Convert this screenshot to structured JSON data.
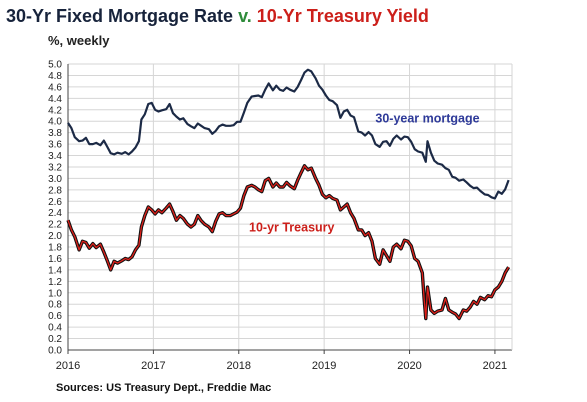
{
  "chart_data": {
    "type": "line",
    "title_part1": "30-Yr Fixed Mortgage Rate",
    "title_part2": "v.",
    "title_part3": "10-Yr Treasury Yield",
    "subtitle": "%, weekly",
    "source": "Sources: US Treasury Dept., Freddie Mac",
    "ylim": [
      0,
      5.0
    ],
    "xlim": [
      2016.0,
      2021.2
    ],
    "yticks": [
      "0.0",
      "0.2",
      "0.4",
      "0.6",
      "0.8",
      "1.0",
      "1.2",
      "1.4",
      "1.6",
      "1.8",
      "2.0",
      "2.2",
      "2.4",
      "2.6",
      "2.8",
      "3.0",
      "3.2",
      "3.4",
      "3.6",
      "3.8",
      "4.0",
      "4.2",
      "4.4",
      "4.6",
      "4.8",
      "5.0"
    ],
    "xticks": [
      "2016",
      "2017",
      "2018",
      "2019",
      "2020",
      "2021"
    ],
    "grid": true,
    "colors": {
      "mortgage": "#1c2a46",
      "treasury": "#111111",
      "treasury_overlay": "#e0201a",
      "grid": "#d6d6d6",
      "axis": "#444444"
    },
    "series": [
      {
        "name": "30-year mortgage",
        "points": [
          [
            2016.0,
            3.97
          ],
          [
            2016.04,
            3.88
          ],
          [
            2016.08,
            3.72
          ],
          [
            2016.13,
            3.65
          ],
          [
            2016.17,
            3.66
          ],
          [
            2016.21,
            3.71
          ],
          [
            2016.25,
            3.6
          ],
          [
            2016.29,
            3.6
          ],
          [
            2016.33,
            3.62
          ],
          [
            2016.38,
            3.58
          ],
          [
            2016.42,
            3.66
          ],
          [
            2016.46,
            3.55
          ],
          [
            2016.5,
            3.44
          ],
          [
            2016.54,
            3.42
          ],
          [
            2016.58,
            3.45
          ],
          [
            2016.63,
            3.43
          ],
          [
            2016.67,
            3.46
          ],
          [
            2016.71,
            3.42
          ],
          [
            2016.75,
            3.47
          ],
          [
            2016.79,
            3.54
          ],
          [
            2016.83,
            3.65
          ],
          [
            2016.86,
            4.03
          ],
          [
            2016.9,
            4.12
          ],
          [
            2016.94,
            4.3
          ],
          [
            2016.98,
            4.32
          ],
          [
            2017.02,
            4.2
          ],
          [
            2017.06,
            4.17
          ],
          [
            2017.1,
            4.19
          ],
          [
            2017.15,
            4.21
          ],
          [
            2017.19,
            4.3
          ],
          [
            2017.23,
            4.14
          ],
          [
            2017.27,
            4.08
          ],
          [
            2017.31,
            4.03
          ],
          [
            2017.35,
            4.05
          ],
          [
            2017.4,
            3.95
          ],
          [
            2017.44,
            3.91
          ],
          [
            2017.48,
            3.88
          ],
          [
            2017.52,
            3.96
          ],
          [
            2017.56,
            3.92
          ],
          [
            2017.6,
            3.88
          ],
          [
            2017.65,
            3.86
          ],
          [
            2017.69,
            3.78
          ],
          [
            2017.73,
            3.83
          ],
          [
            2017.77,
            3.91
          ],
          [
            2017.81,
            3.94
          ],
          [
            2017.85,
            3.92
          ],
          [
            2017.9,
            3.92
          ],
          [
            2017.94,
            3.93
          ],
          [
            2017.98,
            3.99
          ],
          [
            2018.02,
            3.99
          ],
          [
            2018.06,
            4.15
          ],
          [
            2018.1,
            4.32
          ],
          [
            2018.15,
            4.43
          ],
          [
            2018.19,
            4.44
          ],
          [
            2018.23,
            4.45
          ],
          [
            2018.27,
            4.42
          ],
          [
            2018.31,
            4.55
          ],
          [
            2018.35,
            4.66
          ],
          [
            2018.4,
            4.54
          ],
          [
            2018.44,
            4.62
          ],
          [
            2018.48,
            4.55
          ],
          [
            2018.52,
            4.53
          ],
          [
            2018.56,
            4.59
          ],
          [
            2018.6,
            4.55
          ],
          [
            2018.65,
            4.52
          ],
          [
            2018.69,
            4.6
          ],
          [
            2018.73,
            4.72
          ],
          [
            2018.77,
            4.85
          ],
          [
            2018.81,
            4.9
          ],
          [
            2018.85,
            4.87
          ],
          [
            2018.9,
            4.75
          ],
          [
            2018.94,
            4.62
          ],
          [
            2018.98,
            4.55
          ],
          [
            2019.02,
            4.45
          ],
          [
            2019.06,
            4.37
          ],
          [
            2019.1,
            4.35
          ],
          [
            2019.15,
            4.28
          ],
          [
            2019.19,
            4.06
          ],
          [
            2019.23,
            4.17
          ],
          [
            2019.27,
            4.2
          ],
          [
            2019.31,
            4.1
          ],
          [
            2019.35,
            4.07
          ],
          [
            2019.4,
            3.82
          ],
          [
            2019.44,
            3.8
          ],
          [
            2019.48,
            3.75
          ],
          [
            2019.52,
            3.81
          ],
          [
            2019.56,
            3.75
          ],
          [
            2019.6,
            3.6
          ],
          [
            2019.65,
            3.55
          ],
          [
            2019.69,
            3.64
          ],
          [
            2019.73,
            3.65
          ],
          [
            2019.77,
            3.57
          ],
          [
            2019.81,
            3.69
          ],
          [
            2019.85,
            3.75
          ],
          [
            2019.9,
            3.68
          ],
          [
            2019.94,
            3.73
          ],
          [
            2019.98,
            3.72
          ],
          [
            2020.02,
            3.64
          ],
          [
            2020.06,
            3.51
          ],
          [
            2020.1,
            3.47
          ],
          [
            2020.15,
            3.45
          ],
          [
            2020.19,
            3.29
          ],
          [
            2020.21,
            3.65
          ],
          [
            2020.25,
            3.45
          ],
          [
            2020.29,
            3.31
          ],
          [
            2020.33,
            3.26
          ],
          [
            2020.38,
            3.24
          ],
          [
            2020.42,
            3.18
          ],
          [
            2020.46,
            3.15
          ],
          [
            2020.5,
            3.03
          ],
          [
            2020.54,
            3.01
          ],
          [
            2020.58,
            2.96
          ],
          [
            2020.63,
            2.98
          ],
          [
            2020.67,
            2.93
          ],
          [
            2020.71,
            2.87
          ],
          [
            2020.75,
            2.83
          ],
          [
            2020.79,
            2.84
          ],
          [
            2020.83,
            2.78
          ],
          [
            2020.88,
            2.72
          ],
          [
            2020.92,
            2.71
          ],
          [
            2020.96,
            2.67
          ],
          [
            2021.0,
            2.65
          ],
          [
            2021.04,
            2.77
          ],
          [
            2021.08,
            2.73
          ],
          [
            2021.12,
            2.81
          ],
          [
            2021.16,
            2.97
          ]
        ]
      },
      {
        "name": "10-yr Treasury",
        "points": [
          [
            2016.0,
            2.27
          ],
          [
            2016.04,
            2.1
          ],
          [
            2016.08,
            1.98
          ],
          [
            2016.13,
            1.75
          ],
          [
            2016.17,
            1.9
          ],
          [
            2016.21,
            1.88
          ],
          [
            2016.25,
            1.78
          ],
          [
            2016.29,
            1.86
          ],
          [
            2016.33,
            1.79
          ],
          [
            2016.38,
            1.85
          ],
          [
            2016.42,
            1.71
          ],
          [
            2016.46,
            1.56
          ],
          [
            2016.5,
            1.4
          ],
          [
            2016.54,
            1.55
          ],
          [
            2016.58,
            1.52
          ],
          [
            2016.63,
            1.56
          ],
          [
            2016.67,
            1.6
          ],
          [
            2016.71,
            1.58
          ],
          [
            2016.75,
            1.63
          ],
          [
            2016.79,
            1.75
          ],
          [
            2016.83,
            1.83
          ],
          [
            2016.86,
            2.15
          ],
          [
            2016.9,
            2.35
          ],
          [
            2016.94,
            2.5
          ],
          [
            2016.98,
            2.45
          ],
          [
            2017.02,
            2.38
          ],
          [
            2017.06,
            2.45
          ],
          [
            2017.1,
            2.4
          ],
          [
            2017.15,
            2.48
          ],
          [
            2017.19,
            2.55
          ],
          [
            2017.23,
            2.42
          ],
          [
            2017.27,
            2.27
          ],
          [
            2017.31,
            2.35
          ],
          [
            2017.35,
            2.3
          ],
          [
            2017.4,
            2.2
          ],
          [
            2017.44,
            2.15
          ],
          [
            2017.48,
            2.2
          ],
          [
            2017.52,
            2.35
          ],
          [
            2017.56,
            2.26
          ],
          [
            2017.6,
            2.2
          ],
          [
            2017.65,
            2.15
          ],
          [
            2017.69,
            2.07
          ],
          [
            2017.73,
            2.25
          ],
          [
            2017.77,
            2.38
          ],
          [
            2017.81,
            2.4
          ],
          [
            2017.85,
            2.35
          ],
          [
            2017.9,
            2.35
          ],
          [
            2017.94,
            2.38
          ],
          [
            2017.98,
            2.41
          ],
          [
            2018.02,
            2.48
          ],
          [
            2018.06,
            2.7
          ],
          [
            2018.1,
            2.85
          ],
          [
            2018.15,
            2.88
          ],
          [
            2018.19,
            2.85
          ],
          [
            2018.23,
            2.8
          ],
          [
            2018.27,
            2.77
          ],
          [
            2018.31,
            2.96
          ],
          [
            2018.35,
            3.0
          ],
          [
            2018.4,
            2.85
          ],
          [
            2018.44,
            2.92
          ],
          [
            2018.48,
            2.85
          ],
          [
            2018.52,
            2.85
          ],
          [
            2018.56,
            2.93
          ],
          [
            2018.6,
            2.87
          ],
          [
            2018.65,
            2.82
          ],
          [
            2018.69,
            2.97
          ],
          [
            2018.73,
            3.1
          ],
          [
            2018.77,
            3.22
          ],
          [
            2018.81,
            3.15
          ],
          [
            2018.85,
            3.18
          ],
          [
            2018.9,
            3.0
          ],
          [
            2018.94,
            2.88
          ],
          [
            2018.98,
            2.72
          ],
          [
            2019.02,
            2.66
          ],
          [
            2019.06,
            2.7
          ],
          [
            2019.1,
            2.65
          ],
          [
            2019.15,
            2.62
          ],
          [
            2019.19,
            2.45
          ],
          [
            2019.23,
            2.5
          ],
          [
            2019.27,
            2.55
          ],
          [
            2019.31,
            2.4
          ],
          [
            2019.35,
            2.3
          ],
          [
            2019.4,
            2.1
          ],
          [
            2019.44,
            2.1
          ],
          [
            2019.48,
            2.0
          ],
          [
            2019.52,
            2.05
          ],
          [
            2019.56,
            1.9
          ],
          [
            2019.6,
            1.6
          ],
          [
            2019.65,
            1.5
          ],
          [
            2019.69,
            1.75
          ],
          [
            2019.73,
            1.65
          ],
          [
            2019.77,
            1.55
          ],
          [
            2019.81,
            1.8
          ],
          [
            2019.85,
            1.85
          ],
          [
            2019.9,
            1.77
          ],
          [
            2019.94,
            1.92
          ],
          [
            2019.98,
            1.9
          ],
          [
            2020.02,
            1.82
          ],
          [
            2020.06,
            1.6
          ],
          [
            2020.1,
            1.55
          ],
          [
            2020.15,
            1.35
          ],
          [
            2020.17,
            0.9
          ],
          [
            2020.19,
            0.55
          ],
          [
            2020.21,
            1.1
          ],
          [
            2020.25,
            0.7
          ],
          [
            2020.29,
            0.64
          ],
          [
            2020.33,
            0.68
          ],
          [
            2020.38,
            0.7
          ],
          [
            2020.42,
            0.9
          ],
          [
            2020.46,
            0.7
          ],
          [
            2020.5,
            0.66
          ],
          [
            2020.54,
            0.63
          ],
          [
            2020.58,
            0.55
          ],
          [
            2020.63,
            0.7
          ],
          [
            2020.67,
            0.68
          ],
          [
            2020.71,
            0.75
          ],
          [
            2020.75,
            0.85
          ],
          [
            2020.79,
            0.8
          ],
          [
            2020.83,
            0.92
          ],
          [
            2020.88,
            0.88
          ],
          [
            2020.92,
            0.95
          ],
          [
            2020.96,
            0.93
          ],
          [
            2021.0,
            1.05
          ],
          [
            2021.04,
            1.1
          ],
          [
            2021.08,
            1.2
          ],
          [
            2021.12,
            1.35
          ],
          [
            2021.16,
            1.45
          ]
        ]
      }
    ],
    "annotations": [
      {
        "text": "30-year mortgage",
        "color": "#2e3a99",
        "x": 2019.6,
        "y": 3.98
      },
      {
        "text": "10-yr Treasury",
        "color": "#cc1f1a",
        "x": 2018.12,
        "y": 2.07
      }
    ]
  }
}
